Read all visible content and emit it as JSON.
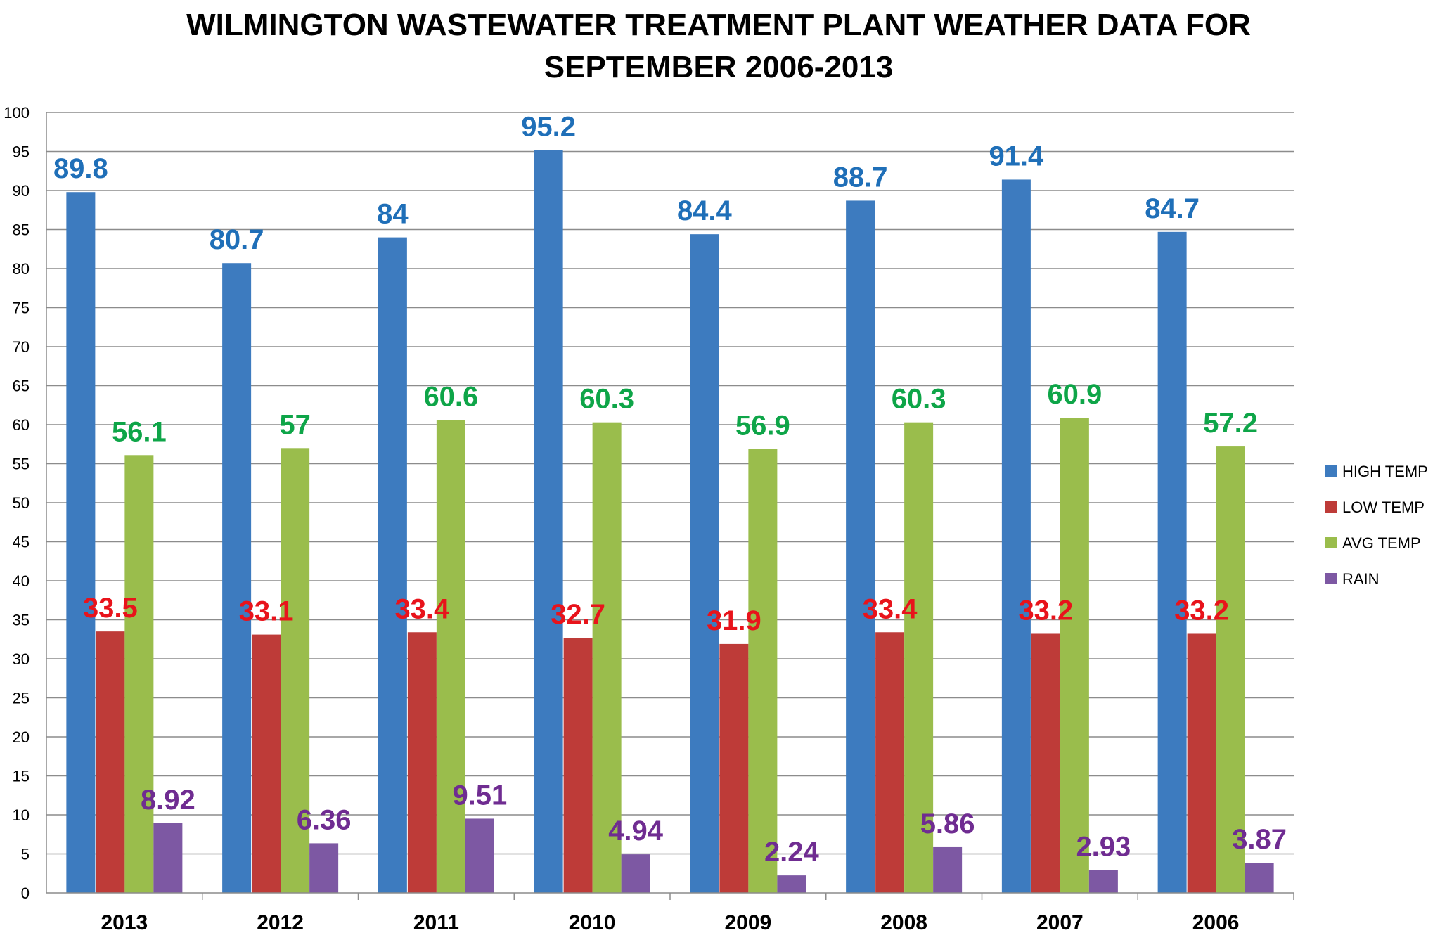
{
  "chart_data": {
    "type": "bar",
    "title_line1": "WILMINGTON WASTEWATER TREATMENT PLANT WEATHER DATA FOR",
    "title_line2": "SEPTEMBER 2006-2013",
    "categories": [
      "2013",
      "2012",
      "2011",
      "2010",
      "2009",
      "2008",
      "2007",
      "2006"
    ],
    "series": [
      {
        "name": "HIGH TEMP",
        "color": "#3d7bbf",
        "label_color": "#1f6fb8",
        "values": [
          89.8,
          80.7,
          84,
          95.2,
          84.4,
          88.7,
          91.4,
          84.7
        ],
        "labels": [
          "89.8",
          "80.7",
          "84",
          "95.2",
          "84.4",
          "88.7",
          "91.4",
          "84.7"
        ]
      },
      {
        "name": "LOW TEMP",
        "color": "#be3b38",
        "label_color": "#e8131b",
        "values": [
          33.5,
          33.1,
          33.4,
          32.7,
          31.9,
          33.4,
          33.2,
          33.2
        ],
        "labels": [
          "33.5",
          "33.1",
          "33.4",
          "32.7",
          "31.9",
          "33.4",
          "33.2",
          "33.2"
        ]
      },
      {
        "name": "AVG TEMP",
        "color": "#9abd4c",
        "label_color": "#0ea548",
        "values": [
          56.1,
          57,
          60.6,
          60.3,
          56.9,
          60.3,
          60.9,
          57.2
        ],
        "labels": [
          "56.1",
          "57",
          "60.6",
          "60.3",
          "56.9",
          "60.3",
          "60.9",
          "57.2"
        ]
      },
      {
        "name": "RAIN",
        "color": "#7d58a3",
        "label_color": "#6f2c91",
        "values": [
          8.92,
          6.36,
          9.51,
          4.94,
          2.24,
          5.86,
          2.93,
          3.87
        ],
        "labels": [
          "8.92",
          "6.36",
          "9.51",
          "4.94",
          "2.24",
          "5.86",
          "2.93",
          "3.87"
        ]
      }
    ],
    "ylim": [
      0,
      100
    ],
    "ytick_step": 5,
    "yticks": [
      "0",
      "5",
      "10",
      "15",
      "20",
      "25",
      "30",
      "35",
      "40",
      "45",
      "50",
      "55",
      "60",
      "65",
      "70",
      "75",
      "80",
      "85",
      "90",
      "95",
      "100"
    ],
    "grid": true,
    "legend_position": "right",
    "xlabel": "",
    "ylabel": ""
  }
}
